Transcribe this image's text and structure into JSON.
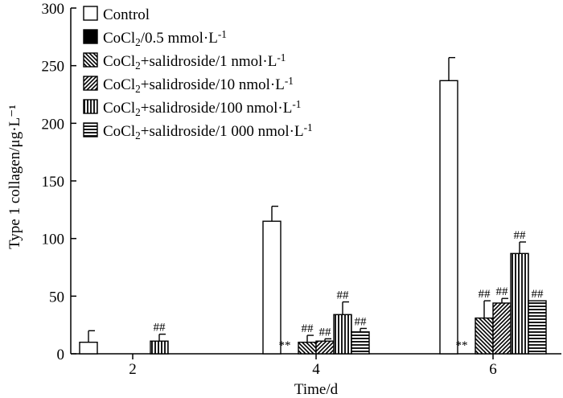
{
  "chart_data": {
    "type": "bar",
    "title": "",
    "xlabel": "Time/d",
    "ylabel": "Type 1 collagen/μg·L⁻¹",
    "ylim": [
      0,
      300
    ],
    "yticks": [
      0,
      50,
      100,
      150,
      200,
      250,
      300
    ],
    "categories": [
      "2",
      "4",
      "6"
    ],
    "legend_position": "top-left",
    "series": [
      {
        "name": "Control",
        "pattern": "white",
        "values": [
          10,
          115,
          237
        ],
        "errors": [
          10,
          13,
          20
        ],
        "labels": [
          "",
          "",
          ""
        ]
      },
      {
        "name": "CoCl₂/0.5 mmol·L⁻¹",
        "pattern": "black",
        "values": [
          0,
          0,
          0
        ],
        "errors": [
          0,
          0,
          0
        ],
        "labels": [
          "",
          "**",
          "**"
        ]
      },
      {
        "name": "CoCl₂+salidroside/1 nmol·L⁻¹",
        "pattern": "diag-back",
        "values": [
          0,
          10,
          31
        ],
        "errors": [
          0,
          6,
          15
        ],
        "labels": [
          "",
          "##",
          "##"
        ]
      },
      {
        "name": "CoCl₂+salidroside/10 nmol·L⁻¹",
        "pattern": "diag-fwd",
        "values": [
          0,
          11,
          44
        ],
        "errors": [
          0,
          2,
          4
        ],
        "labels": [
          "",
          "##",
          "##"
        ]
      },
      {
        "name": "CoCl₂+salidroside/100 nmol·L⁻¹",
        "pattern": "vertical",
        "values": [
          11,
          34,
          87
        ],
        "errors": [
          6,
          11,
          10
        ],
        "labels": [
          "##",
          "##",
          "##"
        ]
      },
      {
        "name": "CoCl₂+salidroside/1 000 nmol·L⁻¹",
        "pattern": "horizontal",
        "values": [
          0,
          19,
          46
        ],
        "errors": [
          0,
          3,
          0
        ],
        "labels": [
          "",
          "##",
          "##"
        ]
      }
    ]
  }
}
